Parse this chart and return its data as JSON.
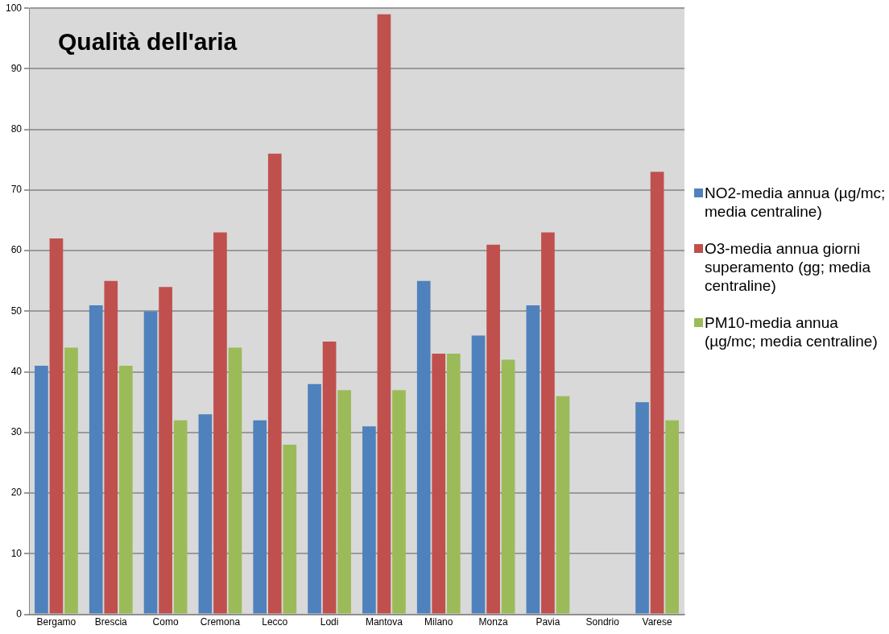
{
  "chart_data": {
    "type": "bar",
    "title": "Qualità dell'aria",
    "categories": [
      "Bergamo",
      "Brescia",
      "Como",
      "Cremona",
      "Lecco",
      "Lodi",
      "Mantova",
      "Milano",
      "Monza",
      "Pavia",
      "Sondrio",
      "Varese"
    ],
    "series": [
      {
        "name": "NO2-media annua (µg/mc; media centraline)",
        "color": "#4f81bd",
        "values": [
          41,
          51,
          50,
          33,
          32,
          38,
          31,
          55,
          46,
          51,
          null,
          35
        ]
      },
      {
        "name": "O3-media annua giorni superamento (gg; media centraline)",
        "color": "#c0504d",
        "values": [
          62,
          55,
          54,
          63,
          76,
          45,
          99,
          43,
          61,
          63,
          null,
          73
        ]
      },
      {
        "name": "PM10-media annua (µg/mc; media centraline)",
        "color": "#9bbb59",
        "values": [
          44,
          41,
          32,
          44,
          28,
          37,
          37,
          43,
          42,
          36,
          null,
          32
        ]
      }
    ],
    "ylim": [
      0,
      100
    ],
    "yticks": [
      0,
      10,
      20,
      30,
      40,
      50,
      60,
      70,
      80,
      90,
      100
    ],
    "grid": "y",
    "legend": "right"
  }
}
